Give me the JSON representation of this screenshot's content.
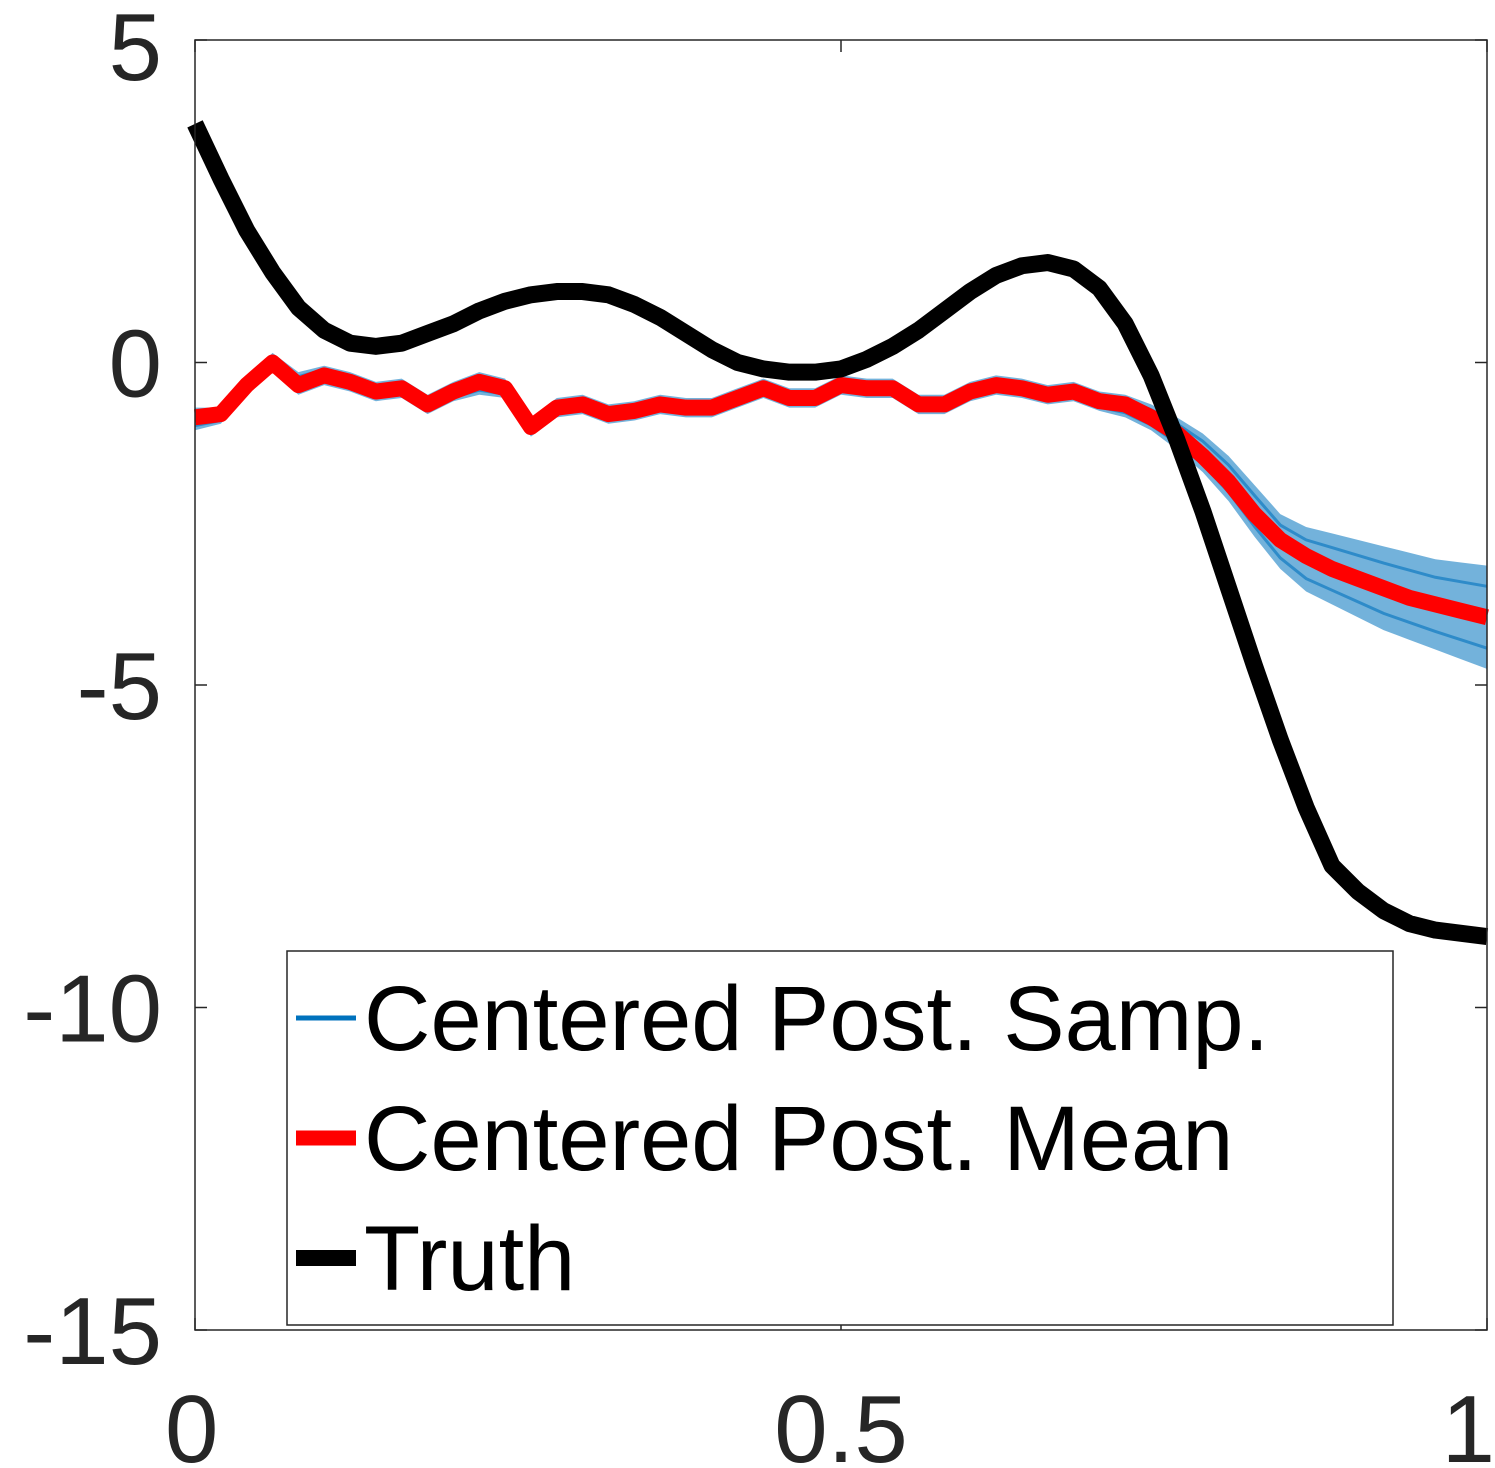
{
  "chart_data": {
    "type": "line",
    "xlim": [
      0,
      1
    ],
    "ylim": [
      -15,
      5
    ],
    "x_ticks": [
      0,
      0.5,
      1
    ],
    "x_tick_labels": [
      "0",
      "0.5",
      "1"
    ],
    "y_ticks": [
      5,
      0,
      -5,
      -10,
      -15
    ],
    "y_tick_labels": [
      "5",
      "0",
      "-5",
      "-10",
      "-15"
    ],
    "grid": false,
    "legend_position": "bottom",
    "series": [
      {
        "name": "Centered Post. Samp.",
        "color": "#0072BD",
        "kind": "band",
        "x": [
          0,
          0.02,
          0.04,
          0.06,
          0.08,
          0.1,
          0.12,
          0.14,
          0.16,
          0.18,
          0.2,
          0.22,
          0.24,
          0.26,
          0.28,
          0.3,
          0.32,
          0.34,
          0.36,
          0.38,
          0.4,
          0.42,
          0.44,
          0.46,
          0.48,
          0.5,
          0.52,
          0.54,
          0.56,
          0.58,
          0.6,
          0.62,
          0.64,
          0.66,
          0.68,
          0.7,
          0.72,
          0.74,
          0.76,
          0.78,
          0.8,
          0.82,
          0.84,
          0.86,
          0.88,
          0.9,
          0.92,
          0.94,
          0.96,
          0.98,
          1.0
        ],
        "lower": [
          -1.05,
          -0.95,
          -0.5,
          -0.15,
          -0.5,
          -0.35,
          -0.45,
          -0.6,
          -0.55,
          -0.8,
          -0.6,
          -0.5,
          -0.55,
          -1.15,
          -0.85,
          -0.8,
          -0.95,
          -0.9,
          -0.8,
          -0.85,
          -0.85,
          -0.7,
          -0.55,
          -0.7,
          -0.7,
          -0.5,
          -0.55,
          -0.55,
          -0.8,
          -0.8,
          -0.6,
          -0.5,
          -0.55,
          -0.65,
          -0.6,
          -0.75,
          -0.85,
          -1.05,
          -1.35,
          -1.7,
          -2.15,
          -2.7,
          -3.2,
          -3.55,
          -3.75,
          -3.95,
          -4.15,
          -4.3,
          -4.45,
          -4.6,
          -4.75
        ],
        "upper": [
          -0.7,
          -0.7,
          -0.25,
          0.15,
          -0.15,
          -0.05,
          -0.15,
          -0.3,
          -0.25,
          -0.5,
          -0.3,
          -0.15,
          -0.25,
          -0.85,
          -0.55,
          -0.5,
          -0.65,
          -0.6,
          -0.5,
          -0.55,
          -0.55,
          -0.4,
          -0.25,
          -0.4,
          -0.4,
          -0.2,
          -0.25,
          -0.25,
          -0.5,
          -0.5,
          -0.3,
          -0.2,
          -0.25,
          -0.35,
          -0.3,
          -0.45,
          -0.5,
          -0.65,
          -0.85,
          -1.1,
          -1.45,
          -1.9,
          -2.35,
          -2.55,
          -2.65,
          -2.75,
          -2.85,
          -2.95,
          -3.05,
          -3.1,
          -3.15
        ]
      },
      {
        "name": "Centered Post. Mean",
        "color": "#FF0000",
        "x": [
          0,
          0.02,
          0.04,
          0.06,
          0.08,
          0.1,
          0.12,
          0.14,
          0.16,
          0.18,
          0.2,
          0.22,
          0.24,
          0.26,
          0.28,
          0.3,
          0.32,
          0.34,
          0.36,
          0.38,
          0.4,
          0.42,
          0.44,
          0.46,
          0.48,
          0.5,
          0.52,
          0.54,
          0.56,
          0.58,
          0.6,
          0.62,
          0.64,
          0.66,
          0.68,
          0.7,
          0.72,
          0.74,
          0.76,
          0.78,
          0.8,
          0.82,
          0.84,
          0.86,
          0.88,
          0.9,
          0.92,
          0.94,
          0.96,
          0.98,
          1.0
        ],
        "y": [
          -0.85,
          -0.8,
          -0.35,
          0.0,
          -0.35,
          -0.2,
          -0.3,
          -0.45,
          -0.4,
          -0.65,
          -0.45,
          -0.3,
          -0.4,
          -1.0,
          -0.7,
          -0.65,
          -0.8,
          -0.75,
          -0.65,
          -0.7,
          -0.7,
          -0.55,
          -0.4,
          -0.55,
          -0.55,
          -0.35,
          -0.4,
          -0.4,
          -0.65,
          -0.65,
          -0.45,
          -0.35,
          -0.4,
          -0.5,
          -0.45,
          -0.6,
          -0.65,
          -0.85,
          -1.1,
          -1.45,
          -1.85,
          -2.35,
          -2.75,
          -3.0,
          -3.2,
          -3.35,
          -3.5,
          -3.65,
          -3.75,
          -3.85,
          -3.95
        ]
      },
      {
        "name": "Truth",
        "color": "#000000",
        "x": [
          0,
          0.02,
          0.04,
          0.06,
          0.08,
          0.1,
          0.12,
          0.14,
          0.16,
          0.18,
          0.2,
          0.22,
          0.24,
          0.26,
          0.28,
          0.3,
          0.32,
          0.34,
          0.36,
          0.38,
          0.4,
          0.42,
          0.44,
          0.46,
          0.48,
          0.5,
          0.52,
          0.54,
          0.56,
          0.58,
          0.6,
          0.62,
          0.64,
          0.66,
          0.68,
          0.7,
          0.72,
          0.74,
          0.76,
          0.78,
          0.8,
          0.82,
          0.84,
          0.86,
          0.88,
          0.9,
          0.92,
          0.94,
          0.96,
          0.98,
          1.0
        ],
        "y": [
          3.7,
          2.85,
          2.05,
          1.4,
          0.85,
          0.5,
          0.3,
          0.25,
          0.3,
          0.45,
          0.6,
          0.8,
          0.95,
          1.05,
          1.1,
          1.1,
          1.05,
          0.9,
          0.7,
          0.45,
          0.2,
          0.0,
          -0.1,
          -0.15,
          -0.15,
          -0.1,
          0.05,
          0.25,
          0.5,
          0.8,
          1.1,
          1.35,
          1.5,
          1.55,
          1.45,
          1.15,
          0.6,
          -0.2,
          -1.2,
          -2.3,
          -3.5,
          -4.7,
          -5.85,
          -6.9,
          -7.8,
          -8.2,
          -8.5,
          -8.7,
          -8.8,
          -8.85,
          -8.9
        ]
      }
    ]
  }
}
